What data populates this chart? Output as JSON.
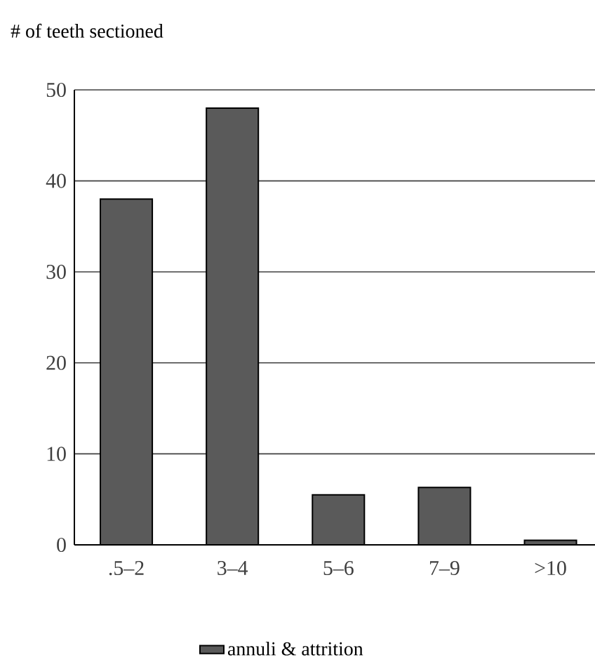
{
  "chart_data": {
    "type": "bar",
    "ylabel": "# of teeth sectioned",
    "categories": [
      ".5–2",
      "3–4",
      "5–6",
      "7–9",
      ">10"
    ],
    "series": [
      {
        "name": "annuli & attrition",
        "color": "#5a5a5a",
        "values": [
          38,
          48,
          5.5,
          6.3,
          0.5
        ]
      }
    ],
    "ylim": [
      0,
      50
    ],
    "yticks": [
      0,
      10,
      20,
      30,
      40,
      50
    ],
    "grid": "y",
    "legend": "bottom"
  }
}
